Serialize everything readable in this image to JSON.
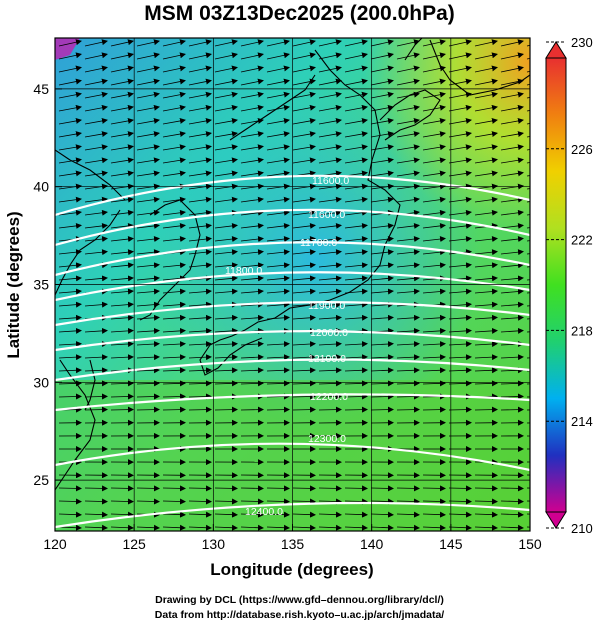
{
  "title": "MSM 03Z13Dec2025 (200.0hPa)",
  "x_axis": {
    "label": "Longitude (degrees)",
    "range": [
      120,
      150
    ],
    "ticks": [
      120,
      125,
      130,
      135,
      140,
      145,
      150
    ]
  },
  "y_axis": {
    "label": "Latitude  (degrees)",
    "range": [
      22.4,
      47.6
    ],
    "ticks": [
      25,
      30,
      35,
      40,
      45
    ]
  },
  "colorbar": {
    "range": [
      210,
      230
    ],
    "tick_labels": [
      "230",
      "226",
      "222",
      "218",
      "214",
      "210"
    ],
    "colors": [
      "#d00090",
      "#2030c0",
      "#00b0f0",
      "#20d070",
      "#40e020",
      "#b0e020",
      "#f0d000",
      "#f08010",
      "#e83030"
    ]
  },
  "contour_labels": [
    "11600.0",
    "11600.0",
    "11700.0",
    "11800.0",
    "11900.0",
    "12000.0",
    "12100.0",
    "12200.0",
    "12300.0",
    "12400.0"
  ],
  "credits": {
    "line1": "Drawing by DCL (https://www.gfd–dennou.org/library/dcl/)",
    "line2": "Data from http://database.rish.kyoto–u.ac.jp/arch/jmadata/"
  }
}
